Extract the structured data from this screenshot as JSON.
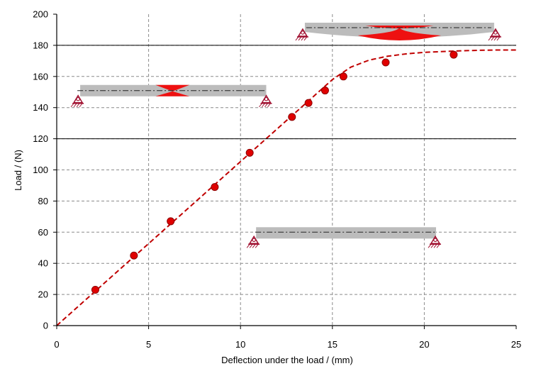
{
  "chart_data": {
    "type": "scatter",
    "xlabel": "Deflection under the load / (mm)",
    "ylabel": "Load / (N)",
    "xlim": [
      0,
      25
    ],
    "ylim": [
      0,
      200
    ],
    "xticks": [
      0,
      5,
      10,
      15,
      20,
      25
    ],
    "yticks": [
      0,
      20,
      40,
      60,
      80,
      100,
      120,
      140,
      160,
      180,
      200
    ],
    "grid": true,
    "series": [
      {
        "kind": "points",
        "color": "#e00000",
        "x": [
          2.1,
          4.2,
          6.2,
          8.6,
          10.5,
          12.8,
          13.7,
          14.6,
          15.6,
          17.9,
          21.6
        ],
        "y": [
          23,
          45,
          67,
          89,
          111,
          134,
          143,
          151,
          160,
          169,
          174
        ]
      },
      {
        "kind": "fit-line",
        "style": "dashed",
        "color": "#c00000",
        "x": [
          0,
          15.0,
          16.0,
          17.0,
          18.0,
          19.0,
          20.0,
          21.0,
          22.0,
          23.0,
          24.0,
          25.0
        ],
        "y": [
          0,
          158,
          166,
          170.5,
          173,
          174.5,
          175.5,
          176,
          176.5,
          176.8,
          177,
          177
        ]
      }
    ],
    "annotations": [
      {
        "name": "beam-bent",
        "x1": 13.5,
        "x2": 23.8,
        "y": 190,
        "bend": "strong"
      },
      {
        "name": "beam-slight",
        "x1": 1.2,
        "x2": 11.4,
        "y": 150,
        "bend": "slight"
      },
      {
        "name": "beam-straight",
        "x1": 10.5,
        "x2": 20.6,
        "y": 60,
        "bend": "none"
      }
    ]
  }
}
